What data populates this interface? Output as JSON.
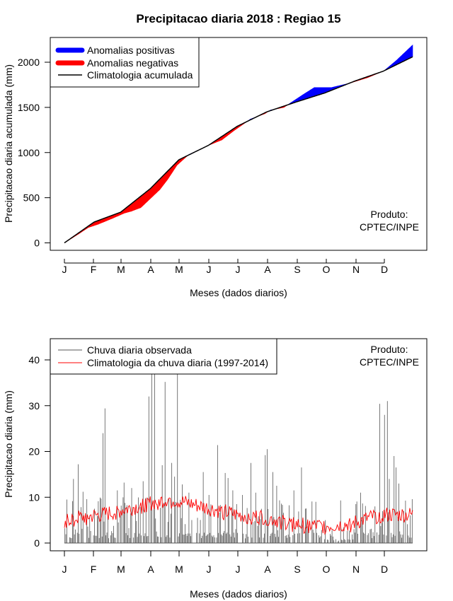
{
  "title": "Precipitacao diaria 2018 : Regiao 15",
  "credit": {
    "line1": "Produto:",
    "line2": "CPTEC/INPE"
  },
  "months": [
    "J",
    "F",
    "M",
    "A",
    "M",
    "J",
    "J",
    "A",
    "S",
    "O",
    "N",
    "D"
  ],
  "colors": {
    "positive": "#0000ff",
    "negative": "#ff0000",
    "clim_line": "#000000",
    "obs_bars": "#555555",
    "clim_daily": "#ff0000"
  },
  "chart_data": [
    {
      "type": "area",
      "name": "accumulated",
      "xlabel": "Meses (dados diarios)",
      "ylabel": "Precipitacao diaria acumulada (mm)",
      "ylim": [
        0,
        2250
      ],
      "yticks": [
        0,
        500,
        1000,
        1500,
        2000
      ],
      "legend": [
        "Anomalias positivas",
        "Anomalias negativas",
        "Climatologia acumulada"
      ],
      "legend_position": "top-left",
      "climatology_knots": [
        [
          0,
          0
        ],
        [
          31,
          230
        ],
        [
          59,
          340
        ],
        [
          90,
          600
        ],
        [
          120,
          920
        ],
        [
          151,
          1080
        ],
        [
          181,
          1290
        ],
        [
          212,
          1450
        ],
        [
          243,
          1560
        ],
        [
          273,
          1660
        ],
        [
          304,
          1790
        ],
        [
          334,
          1900
        ],
        [
          365,
          2060
        ]
      ],
      "observed_knots": [
        [
          0,
          0
        ],
        [
          15,
          100
        ],
        [
          25,
          170
        ],
        [
          35,
          205
        ],
        [
          50,
          270
        ],
        [
          63,
          330
        ],
        [
          70,
          350
        ],
        [
          80,
          390
        ],
        [
          90,
          490
        ],
        [
          100,
          590
        ],
        [
          108,
          700
        ],
        [
          118,
          860
        ],
        [
          130,
          975
        ],
        [
          151,
          1080
        ],
        [
          165,
          1140
        ],
        [
          178,
          1245
        ],
        [
          195,
          1370
        ],
        [
          210,
          1430
        ],
        [
          216,
          1470
        ],
        [
          230,
          1500
        ],
        [
          250,
          1640
        ],
        [
          262,
          1720
        ],
        [
          280,
          1720
        ],
        [
          298,
          1765
        ],
        [
          318,
          1830
        ],
        [
          335,
          1905
        ],
        [
          348,
          2020
        ],
        [
          357,
          2110
        ],
        [
          365,
          2190
        ]
      ]
    },
    {
      "type": "bar",
      "name": "daily",
      "xlabel": "Meses (dados diarios)",
      "ylabel": "Precipitacao diaria (mm)",
      "ylim": [
        0,
        45
      ],
      "yticks": [
        0,
        10,
        20,
        30,
        40
      ],
      "legend": [
        "Chuva diaria observada",
        "Climatologia da chuva diaria (1997-2014)"
      ],
      "legend_position": "top-left",
      "observed_peaks": [
        [
          2,
          9.5
        ],
        [
          9,
          14
        ],
        [
          14,
          17.2
        ],
        [
          19,
          11.2
        ],
        [
          31,
          7.5
        ],
        [
          40,
          24
        ],
        [
          42,
          29.4
        ],
        [
          55,
          11.5
        ],
        [
          62,
          13.2
        ],
        [
          70,
          12
        ],
        [
          82,
          13.5
        ],
        [
          88,
          32
        ],
        [
          91,
          45
        ],
        [
          94,
          40
        ],
        [
          102,
          17
        ],
        [
          105,
          35.2
        ],
        [
          112,
          17.5
        ],
        [
          115,
          14.5
        ],
        [
          118,
          38
        ],
        [
          123,
          12.8
        ],
        [
          130,
          11
        ],
        [
          145,
          15.5
        ],
        [
          151,
          10.5
        ],
        [
          160,
          21.4
        ],
        [
          168,
          15.3
        ],
        [
          171,
          14.2
        ],
        [
          176,
          11.5
        ],
        [
          180,
          8.5
        ],
        [
          186,
          10.5
        ],
        [
          195,
          17.5
        ],
        [
          200,
          11
        ],
        [
          210,
          19.2
        ],
        [
          212,
          20.5
        ],
        [
          218,
          15.5
        ],
        [
          222,
          12.5
        ],
        [
          227,
          8.6
        ],
        [
          240,
          11.5
        ],
        [
          248,
          16.5
        ],
        [
          252,
          7.5
        ],
        [
          263,
          9
        ],
        [
          273,
          5
        ],
        [
          289,
          9.3
        ],
        [
          305,
          8.5
        ],
        [
          310,
          11
        ],
        [
          325,
          8
        ],
        [
          330,
          30.4
        ],
        [
          335,
          28
        ],
        [
          338,
          31
        ],
        [
          340,
          14
        ],
        [
          345,
          19
        ],
        [
          347,
          16.5
        ],
        [
          350,
          13
        ],
        [
          355,
          7
        ]
      ],
      "climatology_range": [
        2,
        12
      ]
    }
  ]
}
